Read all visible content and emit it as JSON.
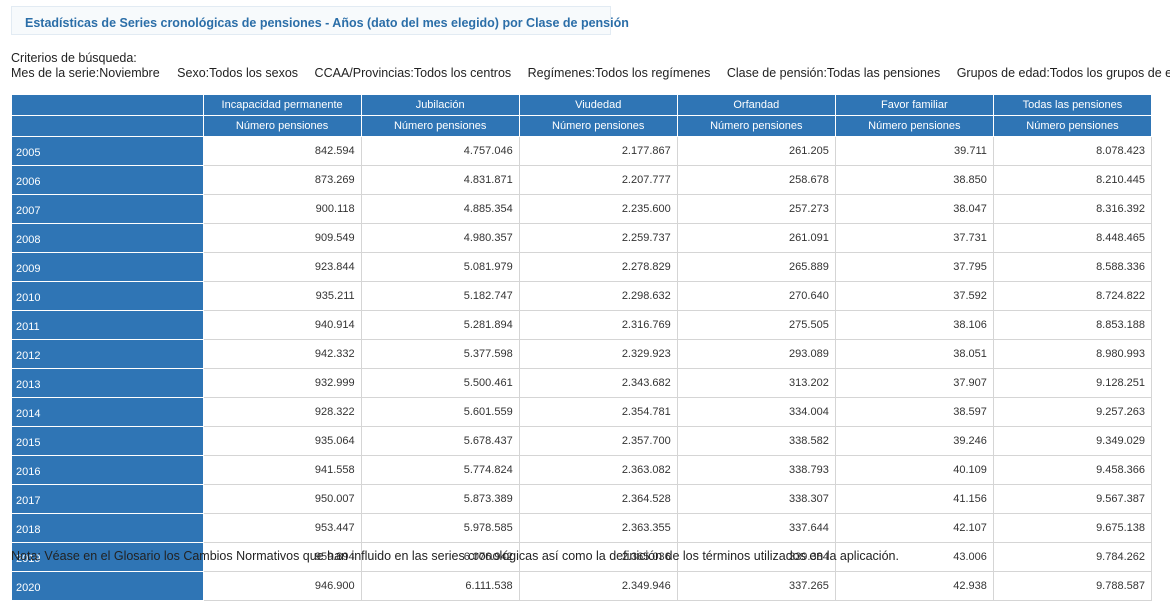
{
  "title": "Estadísticas de Series cronológicas de pensiones - Años (dato del mes elegido) por Clase de pensión",
  "criteria": {
    "heading": "Criterios de búsqueda:",
    "items": [
      "Mes de la serie:Noviembre",
      "Sexo:Todos los sexos",
      "CCAA/Provincias:Todos los centros",
      "Regímenes:Todos los regímenes",
      "Clase de pensión:Todas las pensiones",
      "Grupos de edad:Todos los grupos de edad"
    ]
  },
  "table": {
    "columns": [
      "Incapacidad permanente",
      "Jubilación",
      "Viudedad",
      "Orfandad",
      "Favor familiar",
      "Todas las pensiones"
    ],
    "subheader": "Número pensiones",
    "rows": [
      {
        "year": "2005",
        "values": [
          "842.594",
          "4.757.046",
          "2.177.867",
          "261.205",
          "39.711",
          "8.078.423"
        ]
      },
      {
        "year": "2006",
        "values": [
          "873.269",
          "4.831.871",
          "2.207.777",
          "258.678",
          "38.850",
          "8.210.445"
        ]
      },
      {
        "year": "2007",
        "values": [
          "900.118",
          "4.885.354",
          "2.235.600",
          "257.273",
          "38.047",
          "8.316.392"
        ]
      },
      {
        "year": "2008",
        "values": [
          "909.549",
          "4.980.357",
          "2.259.737",
          "261.091",
          "37.731",
          "8.448.465"
        ]
      },
      {
        "year": "2009",
        "values": [
          "923.844",
          "5.081.979",
          "2.278.829",
          "265.889",
          "37.795",
          "8.588.336"
        ]
      },
      {
        "year": "2010",
        "values": [
          "935.211",
          "5.182.747",
          "2.298.632",
          "270.640",
          "37.592",
          "8.724.822"
        ]
      },
      {
        "year": "2011",
        "values": [
          "940.914",
          "5.281.894",
          "2.316.769",
          "275.505",
          "38.106",
          "8.853.188"
        ]
      },
      {
        "year": "2012",
        "values": [
          "942.332",
          "5.377.598",
          "2.329.923",
          "293.089",
          "38.051",
          "8.980.993"
        ]
      },
      {
        "year": "2013",
        "values": [
          "932.999",
          "5.500.461",
          "2.343.682",
          "313.202",
          "37.907",
          "9.128.251"
        ]
      },
      {
        "year": "2014",
        "values": [
          "928.322",
          "5.601.559",
          "2.354.781",
          "334.004",
          "38.597",
          "9.257.263"
        ]
      },
      {
        "year": "2015",
        "values": [
          "935.064",
          "5.678.437",
          "2.357.700",
          "338.582",
          "39.246",
          "9.349.029"
        ]
      },
      {
        "year": "2016",
        "values": [
          "941.558",
          "5.774.824",
          "2.363.082",
          "338.793",
          "40.109",
          "9.458.366"
        ]
      },
      {
        "year": "2017",
        "values": [
          "950.007",
          "5.873.389",
          "2.364.528",
          "338.307",
          "41.156",
          "9.567.387"
        ]
      },
      {
        "year": "2018",
        "values": [
          "953.447",
          "5.978.585",
          "2.363.355",
          "337.644",
          "42.107",
          "9.675.138"
        ]
      },
      {
        "year": "2019",
        "values": [
          "959.894",
          "6.076.942",
          "2.365.036",
          "339.384",
          "43.006",
          "9.784.262"
        ]
      },
      {
        "year": "2020",
        "values": [
          "946.900",
          "6.111.538",
          "2.349.946",
          "337.265",
          "42.938",
          "9.788.587"
        ]
      }
    ]
  },
  "note": "Nota: Véase en el Glosario los Cambios Normativos que han influido en las series cronológicas  así como la definición de los términos utilizados en la aplicación.",
  "colors": {
    "header_bg": "#2f75b5",
    "title_text": "#2b6ea8"
  }
}
